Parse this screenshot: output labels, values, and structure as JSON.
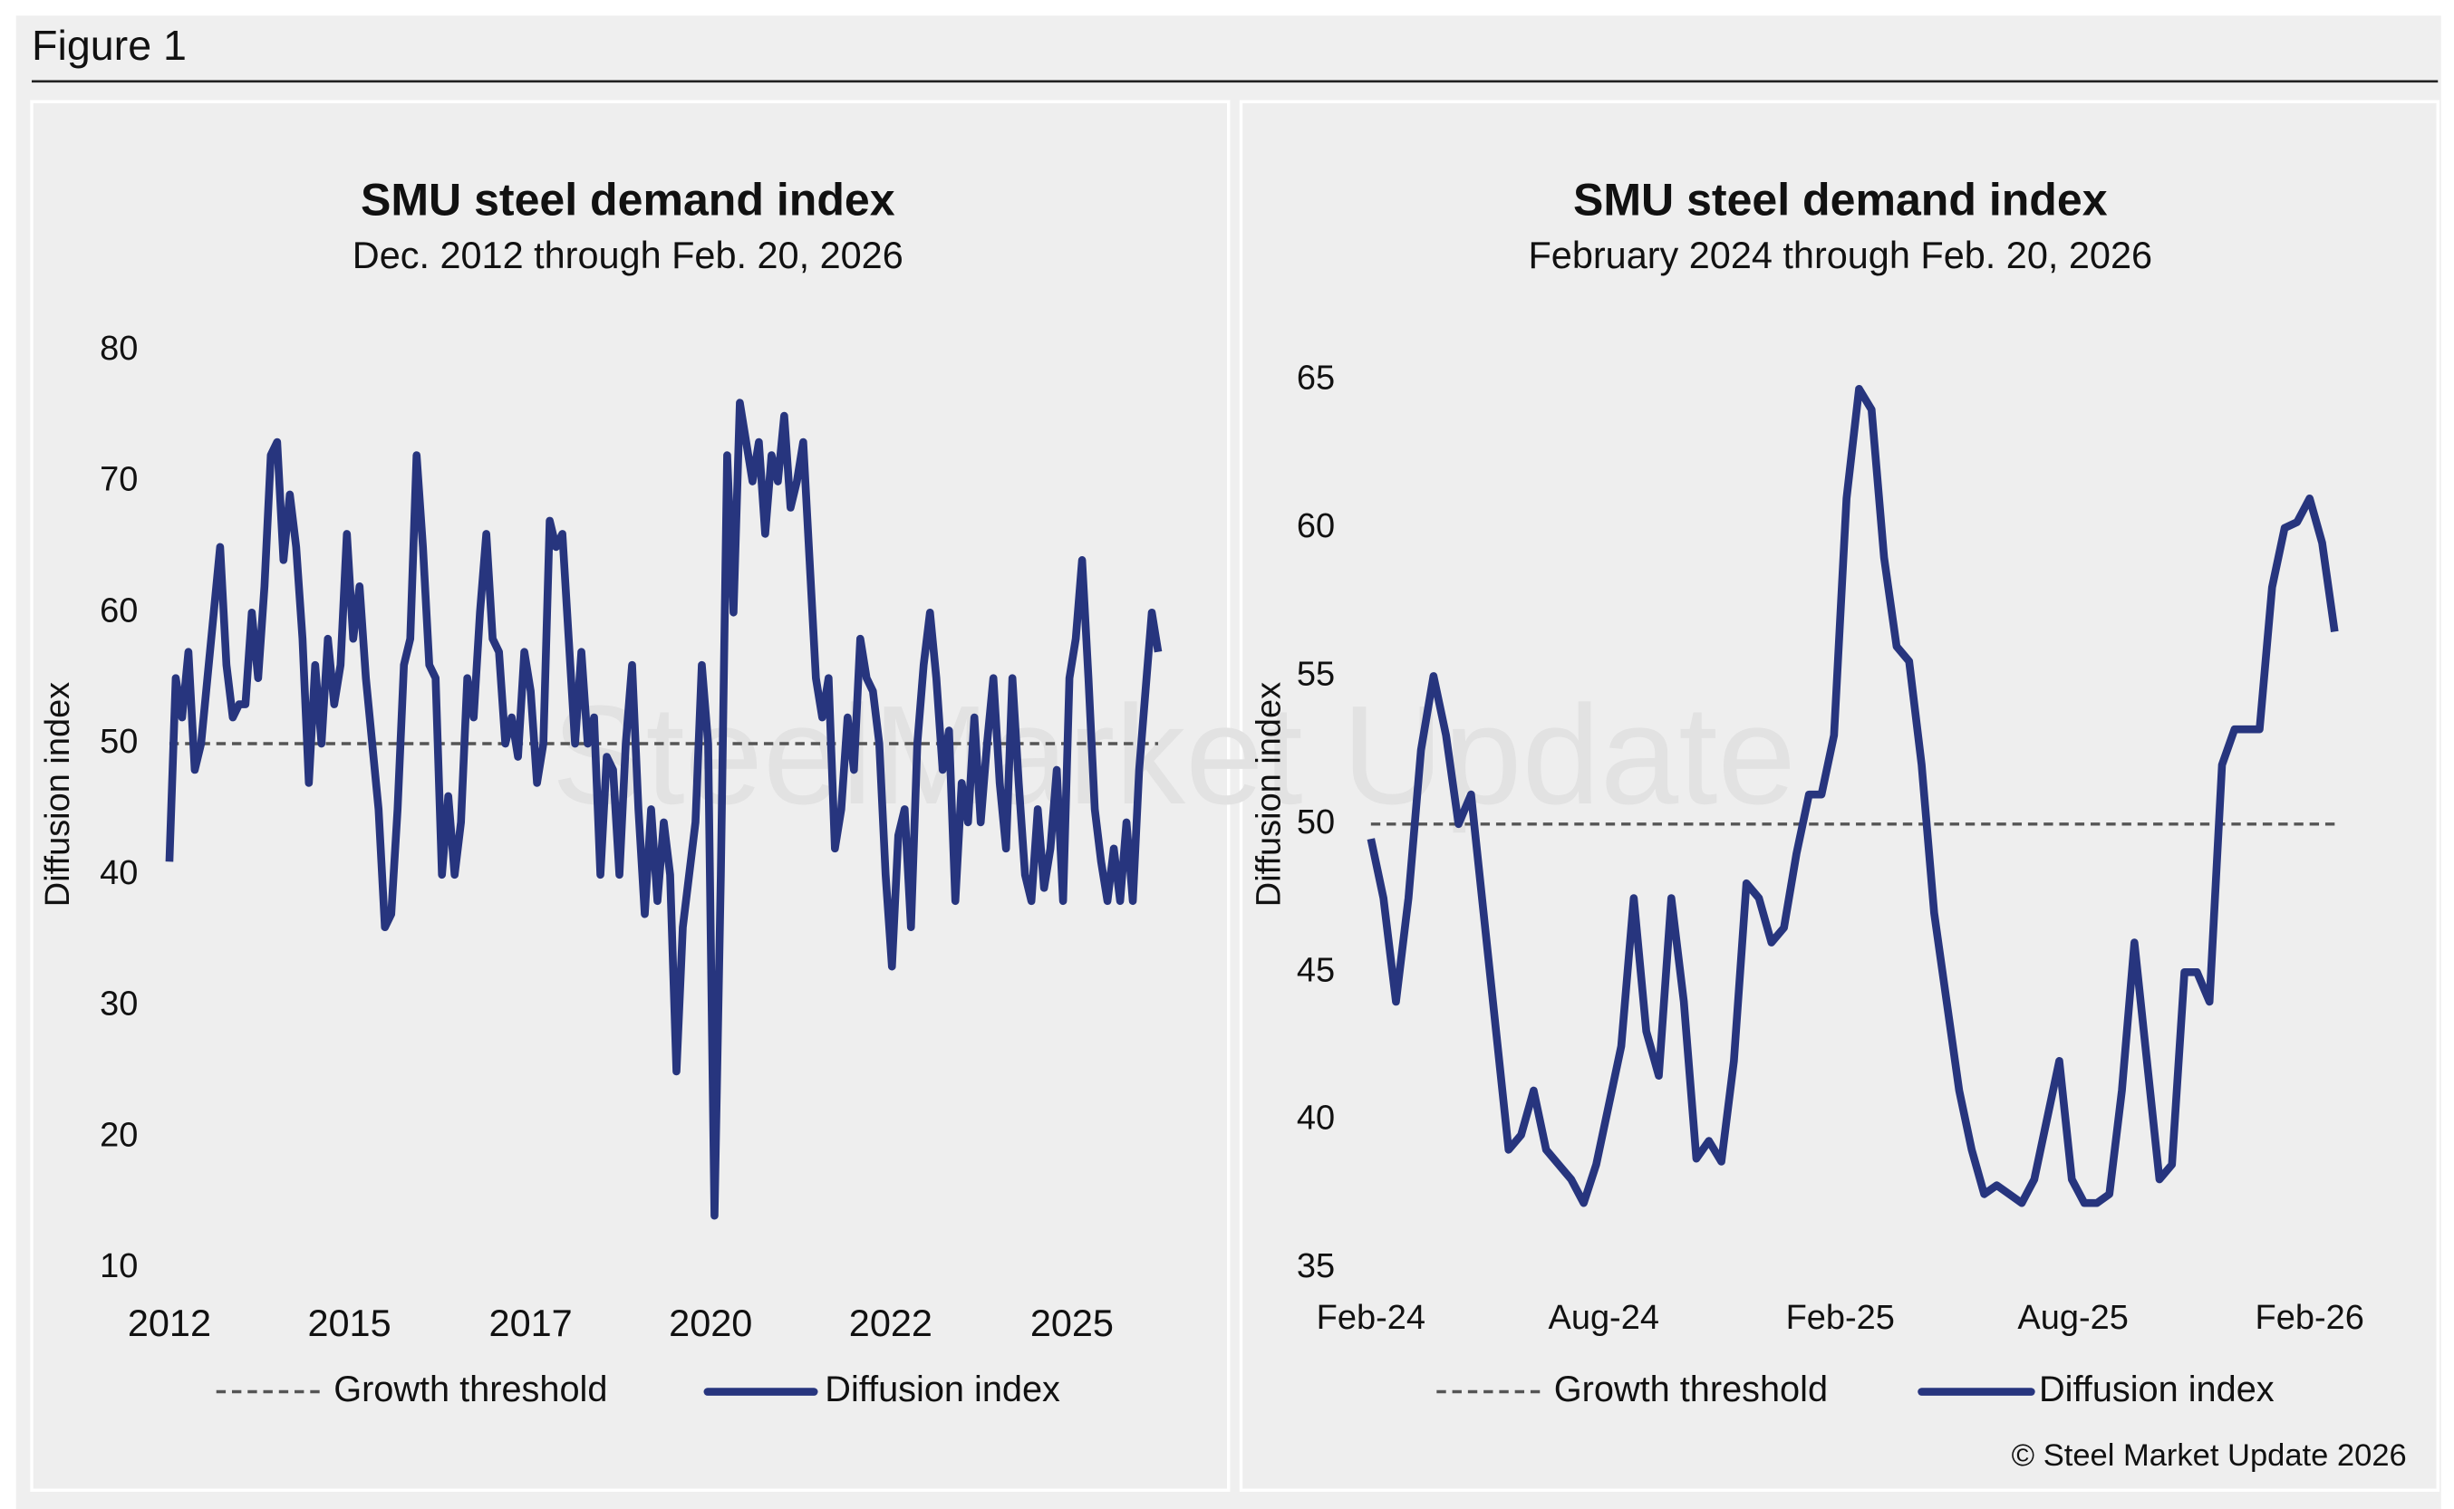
{
  "figure_label": "Figure 1",
  "watermark": "SteelMarket Update",
  "credit": "© Steel Market Update 2026",
  "chart_data": [
    {
      "type": "line",
      "title": "SMU steel demand index",
      "subtitle": "Dec. 2012 through Feb. 20, 2026",
      "y_label": "Diffusion index",
      "ylim": [
        10,
        80
      ],
      "yticks": [
        10,
        20,
        30,
        40,
        50,
        60,
        70,
        80
      ],
      "xlim": [
        0,
        156
      ],
      "xticks": [
        {
          "value": 0,
          "label": "2012"
        },
        {
          "value": 28.4,
          "label": "2015"
        },
        {
          "value": 57,
          "label": "2017"
        },
        {
          "value": 85.4,
          "label": "2020"
        },
        {
          "value": 113.8,
          "label": "2022"
        },
        {
          "value": 142.4,
          "label": "2025"
        }
      ],
      "reference_line": {
        "name": "Growth threshold",
        "value": 50,
        "color": "#555555"
      },
      "series": [
        {
          "name": "Diffusion index",
          "color": "#27357e",
          "values": [
            41,
            55,
            52,
            57,
            48,
            50,
            55,
            60,
            65,
            56,
            52,
            53,
            53,
            60,
            55,
            62,
            72,
            73,
            64,
            69,
            65,
            58,
            47,
            56,
            50,
            58,
            53,
            56,
            66,
            58,
            62,
            55,
            50,
            45,
            36,
            37,
            45,
            56,
            58,
            72,
            65,
            56,
            55,
            40,
            46,
            40,
            44,
            55,
            52,
            60,
            66,
            58,
            57,
            50,
            52,
            49,
            57,
            54,
            47,
            50,
            67,
            65,
            66,
            58,
            50,
            57,
            50,
            52,
            40,
            49,
            48,
            40,
            50,
            56,
            45,
            37,
            45,
            38,
            44,
            40,
            25,
            36,
            40,
            44,
            56,
            50,
            14,
            40,
            72,
            60,
            76,
            73,
            70,
            73,
            66,
            72,
            70,
            75,
            68,
            70,
            73,
            64,
            55,
            52,
            55,
            42,
            45,
            52,
            48,
            58,
            55,
            54,
            50,
            40,
            33,
            43,
            45,
            36,
            50,
            56,
            60,
            55,
            48,
            51,
            38,
            47,
            44,
            52,
            44,
            50,
            55,
            47,
            42,
            55,
            47,
            40,
            38,
            45,
            39,
            42,
            48,
            38,
            55,
            58,
            64,
            55,
            45,
            41,
            38,
            42,
            38,
            44,
            38,
            48,
            54,
            60,
            57
          ]
        }
      ]
    },
    {
      "type": "line",
      "title": "SMU steel demand index",
      "subtitle": "February 2024 through Feb. 20, 2026",
      "y_label": "Diffusion index",
      "ylim": [
        35,
        65
      ],
      "yticks": [
        35,
        40,
        45,
        50,
        55,
        60,
        65
      ],
      "xlim": [
        0,
        77
      ],
      "xticks": [
        {
          "value": 0,
          "label": "Feb-24"
        },
        {
          "value": 18.6,
          "label": "Aug-24"
        },
        {
          "value": 37.5,
          "label": "Feb-25"
        },
        {
          "value": 56.1,
          "label": "Aug-25"
        },
        {
          "value": 75,
          "label": "Feb-26"
        }
      ],
      "reference_line": {
        "name": "Growth threshold",
        "value": 50,
        "color": "#555555"
      },
      "series": [
        {
          "name": "Diffusion index",
          "color": "#27357e",
          "values": [
            49.5,
            47.5,
            44,
            47.5,
            52.5,
            55,
            53,
            50,
            51,
            47,
            43,
            39,
            39.5,
            41,
            39,
            38.5,
            38,
            37.2,
            38.5,
            40.5,
            42.5,
            47.5,
            43,
            41.5,
            47.5,
            44,
            38.7,
            39.3,
            38.6,
            42,
            48,
            47.5,
            46,
            46.5,
            49,
            51,
            51,
            53,
            61,
            64.7,
            64,
            59,
            56,
            55.5,
            52,
            47,
            44,
            41,
            39,
            37.5,
            37.8,
            37.5,
            37.2,
            38,
            40,
            42,
            38,
            37.2,
            37.2,
            37.5,
            41,
            46,
            42,
            38,
            38.5,
            45,
            45,
            44,
            52,
            53.2,
            53.2,
            53.2,
            58,
            60,
            60.2,
            61,
            59.5,
            56.5
          ]
        }
      ]
    }
  ]
}
